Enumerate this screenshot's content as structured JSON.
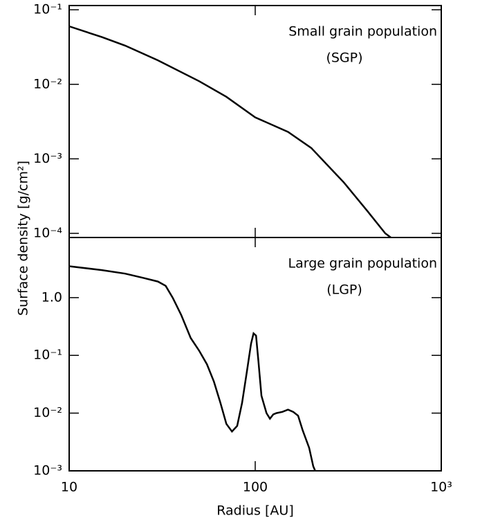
{
  "chart_data": [
    {
      "type": "line",
      "ylabel": "Surface density [g/cm²]",
      "annotations": [
        "Small grain population",
        "(SGP)"
      ],
      "x": [
        10,
        15,
        20,
        30,
        50,
        70,
        100,
        150,
        200,
        300,
        400,
        500,
        536
      ],
      "values": [
        0.06,
        0.043,
        0.033,
        0.021,
        0.011,
        0.0068,
        0.0036,
        0.0023,
        0.0014,
        0.00048,
        0.0002,
        0.0001,
        8.8e-05
      ],
      "color": "#000000",
      "xscale": "log",
      "yscale": "log",
      "xlim": [
        10,
        1000
      ],
      "ylim": [
        8.8e-05,
        0.114
      ],
      "xticks": [
        10,
        100,
        1000
      ],
      "yticks": [
        {
          "value": 0.1,
          "label": "10⁻¹"
        },
        {
          "value": 0.01,
          "label": "10⁻²"
        },
        {
          "value": 0.001,
          "label": "10⁻³"
        },
        {
          "value": 0.0001,
          "label": "10⁻⁴"
        }
      ]
    },
    {
      "type": "line",
      "xlabel": "Radius [AU]",
      "annotations": [
        "Large grain population",
        "(LGP)"
      ],
      "x": [
        10,
        15,
        20,
        25,
        30,
        33,
        36,
        40,
        45,
        50,
        55,
        60,
        65,
        70,
        75,
        80,
        85,
        90,
        95,
        98,
        101,
        104,
        108,
        115,
        120,
        125,
        130,
        140,
        150,
        160,
        170,
        180,
        195,
        205,
        210
      ],
      "values": [
        3.5,
        3.0,
        2.6,
        2.2,
        1.9,
        1.6,
        1.0,
        0.5,
        0.2,
        0.12,
        0.07,
        0.035,
        0.015,
        0.0065,
        0.0048,
        0.006,
        0.015,
        0.05,
        0.16,
        0.24,
        0.22,
        0.08,
        0.02,
        0.01,
        0.008,
        0.0095,
        0.01,
        0.0105,
        0.0115,
        0.0105,
        0.009,
        0.005,
        0.0025,
        0.0012,
        0.001
      ],
      "color": "#000000",
      "xscale": "log",
      "yscale": "log",
      "xlim": [
        10,
        1000
      ],
      "ylim": [
        0.001,
        11
      ],
      "xticks": [
        10,
        100,
        {
          "value": 1000,
          "label": "10³"
        }
      ],
      "yticks": [
        {
          "value": 1,
          "label": "1.0"
        },
        {
          "value": 0.1,
          "label": "10⁻¹"
        },
        {
          "value": 0.01,
          "label": "10⁻²"
        },
        {
          "value": 0.001,
          "label": "10⁻³"
        }
      ]
    }
  ]
}
